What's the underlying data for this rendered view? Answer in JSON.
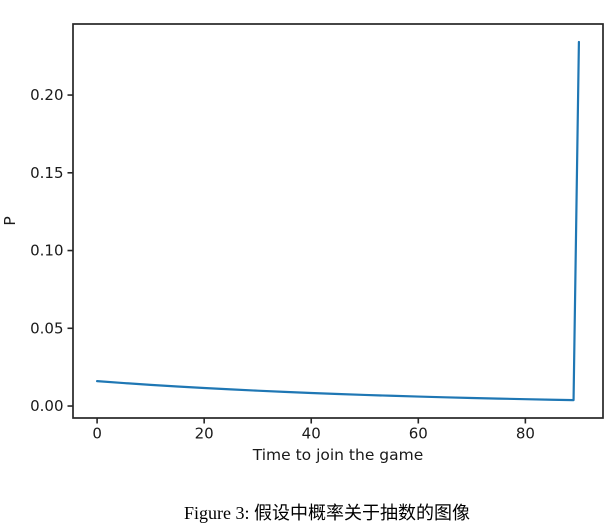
{
  "page": {
    "background": "#ffffff"
  },
  "figure": {
    "caption": "Figure 3: 假设中概率关于抽数的图像"
  },
  "chart_data": {
    "type": "line",
    "title": "",
    "xlabel": "Time to join the game",
    "ylabel": "P",
    "xlim": [
      -4.5,
      94.5
    ],
    "ylim": [
      -0.0077,
      0.2457
    ],
    "x_ticks": [
      0,
      20,
      40,
      60,
      80
    ],
    "x_tick_labels": [
      "0",
      "20",
      "40",
      "60",
      "80"
    ],
    "y_ticks": [
      0.0,
      0.05,
      0.1,
      0.15,
      0.2
    ],
    "y_tick_labels": [
      "0.00",
      "0.05",
      "0.10",
      "0.15",
      "0.20"
    ],
    "grid": false,
    "legend": "none",
    "line_color": "#1f77b4",
    "axis_color": "#262626",
    "text_color": "#1a1a1a",
    "series": [
      {
        "x": [
          0,
          5,
          10,
          15,
          20,
          25,
          30,
          35,
          40,
          45,
          50,
          55,
          60,
          65,
          70,
          75,
          80,
          85,
          89,
          90
        ],
        "y": [
          0.016,
          0.01476,
          0.01362,
          0.01256,
          0.01159,
          0.01069,
          0.00986,
          0.0091,
          0.00839,
          0.00774,
          0.00714,
          0.00659,
          0.00608,
          0.00561,
          0.00517,
          0.00477,
          0.0044,
          0.00406,
          0.00381,
          0.23416
        ]
      }
    ]
  }
}
